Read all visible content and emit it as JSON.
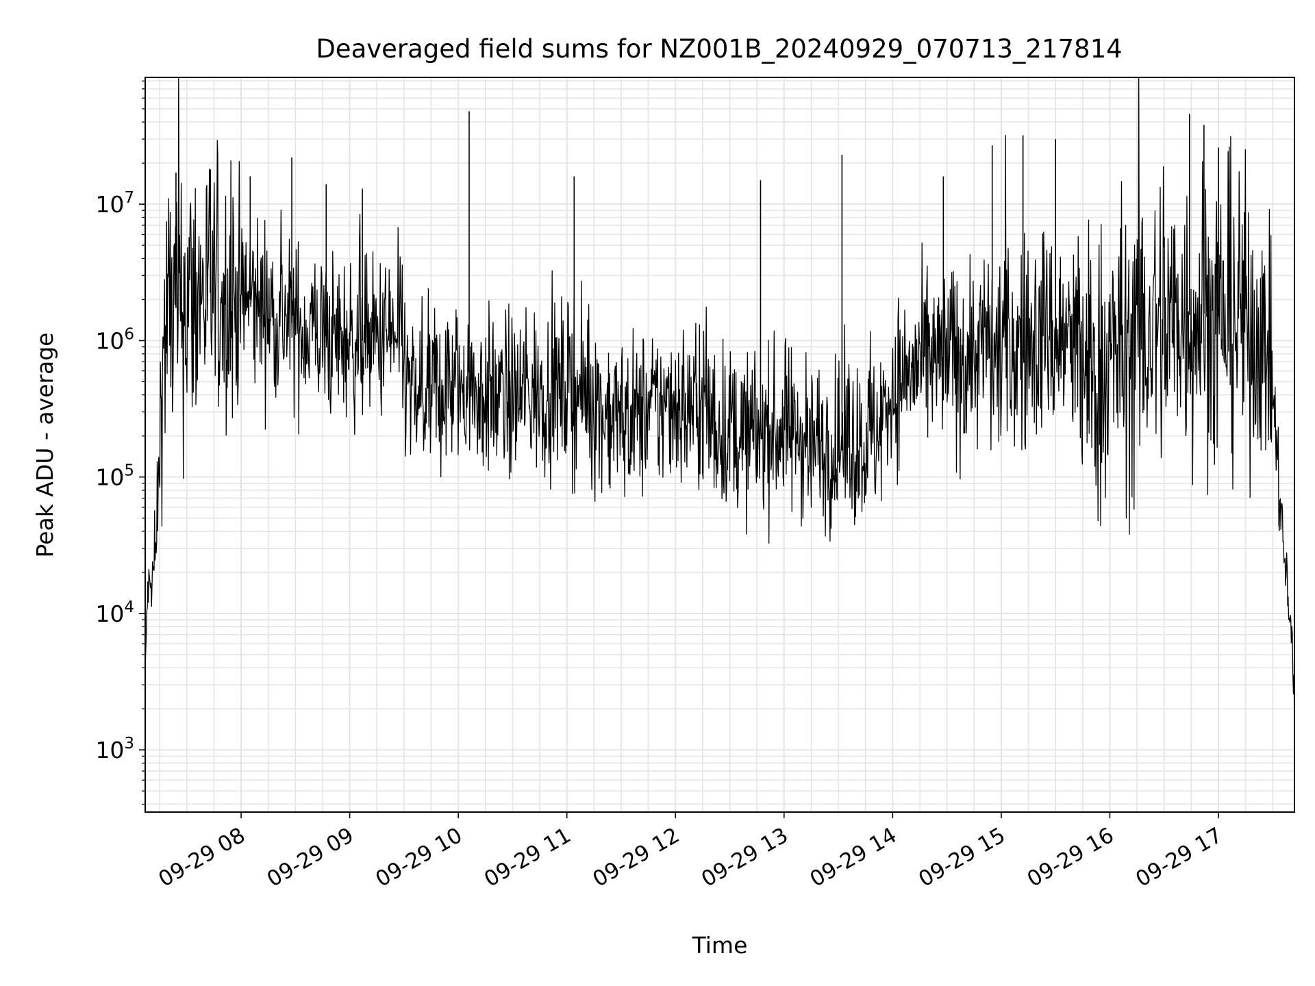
{
  "chart_data": {
    "type": "line",
    "title": "Deaveraged field sums for NZ001B_20240929_070713_217814",
    "xlabel": "Time",
    "ylabel": "Peak ADU - average",
    "yscale": "log",
    "ylim": [
      350,
      85000000
    ],
    "xlim": [
      "2024-09-29 07:07",
      "2024-09-29 17:42"
    ],
    "grid": "on (major and minor)",
    "line_color": "#000000",
    "x_ticks": [
      {
        "time": "2024-09-29 08:00",
        "label": "09-29 08"
      },
      {
        "time": "2024-09-29 09:00",
        "label": "09-29 09"
      },
      {
        "time": "2024-09-29 10:00",
        "label": "09-29 10"
      },
      {
        "time": "2024-09-29 11:00",
        "label": "09-29 11"
      },
      {
        "time": "2024-09-29 12:00",
        "label": "09-29 12"
      },
      {
        "time": "2024-09-29 13:00",
        "label": "09-29 13"
      },
      {
        "time": "2024-09-29 14:00",
        "label": "09-29 14"
      },
      {
        "time": "2024-09-29 15:00",
        "label": "09-29 15"
      },
      {
        "time": "2024-09-29 16:00",
        "label": "09-29 16"
      },
      {
        "time": "2024-09-29 17:00",
        "label": "09-29 17"
      }
    ],
    "y_ticks": [
      {
        "value": 1000,
        "base": "10",
        "exp": "3"
      },
      {
        "value": 10000,
        "base": "10",
        "exp": "4"
      },
      {
        "value": 100000,
        "base": "10",
        "exp": "5"
      },
      {
        "value": 1000000,
        "base": "10",
        "exp": "6"
      },
      {
        "value": 10000000,
        "base": "10",
        "exp": "7"
      }
    ],
    "series": [
      {
        "x": [
          "2024-09-29 07:07",
          "2024-09-29 07:08",
          "2024-09-29 07:09",
          "2024-09-29 07:10",
          "2024-09-29 07:11",
          "2024-09-29 07:12",
          "2024-09-29 07:13",
          "2024-09-29 07:14",
          "2024-09-29 07:15",
          "2024-09-29 07:16",
          "2024-09-29 07:18",
          "2024-09-29 07:20",
          "2024-09-29 07:25",
          "2024-09-29 07:30",
          "2024-09-29 07:35",
          "2024-09-29 07:40",
          "2024-09-29 07:45",
          "2024-09-29 07:50",
          "2024-09-29 07:55",
          "2024-09-29 08:05",
          "2024-09-29 08:15",
          "2024-09-29 08:25",
          "2024-09-29 08:35",
          "2024-09-29 08:45",
          "2024-09-29 08:55",
          "2024-09-29 09:05",
          "2024-09-29 09:15",
          "2024-09-29 09:25",
          "2024-09-29 09:30",
          "2024-09-29 09:35",
          "2024-09-29 09:40",
          "2024-09-29 09:45",
          "2024-09-29 09:50",
          "2024-09-29 09:55",
          "2024-09-29 10:00",
          "2024-09-29 10:05",
          "2024-09-29 10:10",
          "2024-09-29 10:20",
          "2024-09-29 10:30",
          "2024-09-29 10:40",
          "2024-09-29 10:50",
          "2024-09-29 11:00",
          "2024-09-29 11:10",
          "2024-09-29 11:20",
          "2024-09-29 11:30",
          "2024-09-29 11:40",
          "2024-09-29 11:50",
          "2024-09-29 12:00",
          "2024-09-29 12:10",
          "2024-09-29 12:20",
          "2024-09-29 12:30",
          "2024-09-29 12:40",
          "2024-09-29 12:50",
          "2024-09-29 13:00",
          "2024-09-29 13:10",
          "2024-09-29 13:20",
          "2024-09-29 13:30",
          "2024-09-29 13:40",
          "2024-09-29 13:50",
          "2024-09-29 14:00",
          "2024-09-29 14:10",
          "2024-09-29 14:20",
          "2024-09-29 14:30",
          "2024-09-29 14:40",
          "2024-09-29 14:50",
          "2024-09-29 15:00",
          "2024-09-29 15:10",
          "2024-09-29 15:20",
          "2024-09-29 15:30",
          "2024-09-29 15:40",
          "2024-09-29 15:50",
          "2024-09-29 16:00",
          "2024-09-29 16:10",
          "2024-09-29 16:20",
          "2024-09-29 16:30",
          "2024-09-29 16:40",
          "2024-09-29 16:50",
          "2024-09-29 17:00",
          "2024-09-29 17:10",
          "2024-09-29 17:20",
          "2024-09-29 17:28",
          "2024-09-29 17:30",
          "2024-09-29 17:33",
          "2024-09-29 17:35",
          "2024-09-29 17:37",
          "2024-09-29 17:39",
          "2024-09-29 17:41",
          "2024-09-29 17:42"
        ],
        "y": [
          3000,
          12000,
          16000,
          15000,
          18000,
          22000,
          30000,
          50000,
          180000,
          500000,
          1200000,
          1500000,
          1800000,
          2000000,
          2200000,
          2300000,
          2200000,
          2100000,
          2000000,
          2000000,
          1700000,
          1400000,
          1200000,
          1100000,
          1000000,
          1000000,
          1000000,
          1000000,
          600000,
          350000,
          350000,
          380000,
          420000,
          450000,
          460000,
          450000,
          420000,
          380000,
          380000,
          400000,
          420000,
          450000,
          380000,
          300000,
          260000,
          280000,
          320000,
          350000,
          300000,
          250000,
          220000,
          200000,
          220000,
          220000,
          200000,
          170000,
          170000,
          180000,
          190000,
          450000,
          600000,
          650000,
          700000,
          750000,
          800000,
          850000,
          900000,
          1000000,
          1050000,
          900000,
          500000,
          700000,
          900000,
          1100000,
          1300000,
          1500000,
          1600000,
          1500000,
          1400000,
          1200000,
          900000,
          400000,
          120000,
          45000,
          20000,
          10000,
          6000,
          1500
        ],
        "noise_sigma": [
          0.1,
          0.1,
          0.1,
          0.1,
          0.1,
          0.15,
          0.15,
          0.2,
          0.3,
          0.4,
          0.55,
          0.55,
          0.55,
          0.55,
          0.55,
          0.5,
          0.5,
          0.45,
          0.45,
          0.35,
          0.3,
          0.3,
          0.3,
          0.3,
          0.3,
          0.3,
          0.3,
          0.3,
          0.3,
          0.3,
          0.3,
          0.3,
          0.3,
          0.3,
          0.3,
          0.3,
          0.3,
          0.3,
          0.3,
          0.3,
          0.3,
          0.3,
          0.3,
          0.3,
          0.3,
          0.3,
          0.3,
          0.3,
          0.3,
          0.3,
          0.3,
          0.3,
          0.3,
          0.3,
          0.3,
          0.3,
          0.3,
          0.3,
          0.3,
          0.3,
          0.3,
          0.3,
          0.35,
          0.35,
          0.35,
          0.4,
          0.4,
          0.4,
          0.4,
          0.45,
          0.55,
          0.55,
          0.55,
          0.55,
          0.55,
          0.55,
          0.55,
          0.55,
          0.55,
          0.5,
          0.4,
          0.3,
          0.2,
          0.15,
          0.15,
          0.1,
          0.1,
          0.1
        ]
      }
    ],
    "spikes": [
      {
        "x": "2024-09-29 07:24",
        "y": 17000000
      },
      {
        "x": "2024-09-29 07:43",
        "y": 18000000
      },
      {
        "x": "2024-09-29 08:05",
        "y": 16000000
      },
      {
        "x": "2024-09-29 08:28",
        "y": 22000000
      },
      {
        "x": "2024-09-29 08:47",
        "y": 14000000
      },
      {
        "x": "2024-09-29 09:07",
        "y": 13000000
      },
      {
        "x": "2024-09-29 10:06",
        "y": 48000000
      },
      {
        "x": "2024-09-29 11:04",
        "y": 16000000
      },
      {
        "x": "2024-09-29 12:47",
        "y": 15000000
      },
      {
        "x": "2024-09-29 13:32",
        "y": 23000000
      },
      {
        "x": "2024-09-29 14:28",
        "y": 16000000
      },
      {
        "x": "2024-09-29 14:55",
        "y": 27000000
      },
      {
        "x": "2024-09-29 15:12",
        "y": 32000000
      },
      {
        "x": "2024-09-29 15:30",
        "y": 30000000
      },
      {
        "x": "2024-09-29 16:44",
        "y": 46000000
      },
      {
        "x": "2024-09-29 16:52",
        "y": 38000000
      },
      {
        "x": "2024-09-29 17:00",
        "y": 26000000
      }
    ]
  }
}
